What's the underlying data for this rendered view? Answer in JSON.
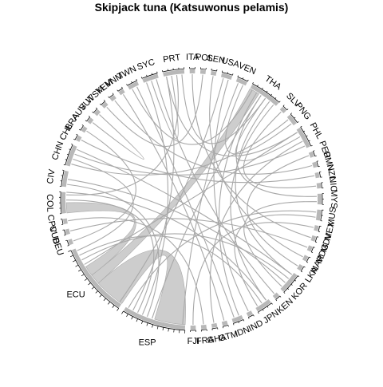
{
  "chart_data": {
    "type": "chord",
    "title": "Skipjack tuna (Katsuwonus pelamis)",
    "colors": {
      "sector": "#b8b8b8",
      "link": "#a8a8a8",
      "link_fill": "#c8c8c8",
      "axis": "#000000"
    },
    "sectors": [
      {
        "label": "CHN",
        "size": 4
      },
      {
        "label": "CHL",
        "size": 1
      },
      {
        "label": "BRA",
        "size": 1
      },
      {
        "label": "AUS",
        "size": 1
      },
      {
        "label": "VUT",
        "size": 1
      },
      {
        "label": "WSM",
        "size": 1
      },
      {
        "label": "YEM",
        "size": 1
      },
      {
        "label": "VNM",
        "size": 1
      },
      {
        "label": "TWN",
        "size": 2
      },
      {
        "label": "SYC",
        "size": 3
      },
      {
        "label": "PRT",
        "size": 4
      },
      {
        "label": "ITA",
        "size": 1
      },
      {
        "label": "POL",
        "size": 1
      },
      {
        "label": "SEN",
        "size": 1
      },
      {
        "label": "USA",
        "size": 2
      },
      {
        "label": "VEN",
        "size": 2
      },
      {
        "label": "THA",
        "size": 6
      },
      {
        "label": "SLV",
        "size": 1
      },
      {
        "label": "PNG",
        "size": 2
      },
      {
        "label": "PHL",
        "size": 4
      },
      {
        "label": "PER",
        "size": 1
      },
      {
        "label": "OMN",
        "size": 1
      },
      {
        "label": "NZL",
        "size": 1
      },
      {
        "label": "NIC",
        "size": 1
      },
      {
        "label": "MYS",
        "size": 2
      },
      {
        "label": "MUS",
        "size": 2
      },
      {
        "label": "MEX",
        "size": 1
      },
      {
        "label": "MDV",
        "size": 1
      },
      {
        "label": "MDG",
        "size": 1
      },
      {
        "label": "MAR",
        "size": 1
      },
      {
        "label": "LKA",
        "size": 1
      },
      {
        "label": "KOR",
        "size": 4
      },
      {
        "label": "KEN",
        "size": 1
      },
      {
        "label": "JPN",
        "size": 3
      },
      {
        "label": "IND",
        "size": 1
      },
      {
        "label": "IDN",
        "size": 2
      },
      {
        "label": "GTM",
        "size": 1
      },
      {
        "label": "GHA",
        "size": 1
      },
      {
        "label": "FRA",
        "size": 1
      },
      {
        "label": "FJI",
        "size": 1
      },
      {
        "label": "ESP",
        "size": 12
      },
      {
        "label": "ECU",
        "size": 14
      },
      {
        "label": "DEU",
        "size": 1
      },
      {
        "label": "CUB",
        "size": 1
      },
      {
        "label": "CPV",
        "size": 1
      },
      {
        "label": "COL",
        "size": 4
      },
      {
        "label": "CIV",
        "size": 3
      }
    ],
    "links": [
      {
        "source": "ECU",
        "target": "ESP",
        "value": 6
      },
      {
        "source": "ECU",
        "target": "THA",
        "value": 2
      },
      {
        "source": "ECU",
        "target": "COL",
        "value": 2
      },
      {
        "source": "ESP",
        "target": "THA",
        "value": 1
      },
      {
        "source": "ESP",
        "target": "CIV",
        "value": 1
      },
      {
        "source": "ESP",
        "target": "SYC",
        "value": 1
      },
      {
        "source": "COL",
        "target": "ESP",
        "value": 1
      },
      {
        "source": "PRT",
        "target": "ESP",
        "value": 1
      },
      {
        "source": "PHL",
        "target": "ECU",
        "value": 1
      },
      {
        "source": "PHL",
        "target": "THA",
        "value": 1
      },
      {
        "source": "KOR",
        "target": "THA",
        "value": 1
      },
      {
        "source": "KOR",
        "target": "ECU",
        "value": 1
      },
      {
        "source": "JPN",
        "target": "THA",
        "value": 1
      },
      {
        "source": "JPN",
        "target": "ECU",
        "value": 1
      },
      {
        "source": "CHN",
        "target": "PNG",
        "value": 1
      },
      {
        "source": "CHN",
        "target": "ECU",
        "value": 1
      },
      {
        "source": "TWN",
        "target": "THA",
        "value": 1
      },
      {
        "source": "USA",
        "target": "ECU",
        "value": 1
      },
      {
        "source": "IDN",
        "target": "THA",
        "value": 1
      },
      {
        "source": "MUS",
        "target": "ESP",
        "value": 1
      },
      {
        "source": "MYS",
        "target": "THA",
        "value": 1
      },
      {
        "source": "VEN",
        "target": "ESP",
        "value": 1
      },
      {
        "source": "SYC",
        "target": "PRT",
        "value": 1
      },
      {
        "source": "CIV",
        "target": "KOR",
        "value": 1
      },
      {
        "source": "PRT",
        "target": "COL",
        "value": 1
      },
      {
        "source": "GHA",
        "target": "PHL",
        "value": 1
      },
      {
        "source": "FJI",
        "target": "MEX",
        "value": 1
      },
      {
        "source": "IND",
        "target": "USA",
        "value": 1
      },
      {
        "source": "KEN",
        "target": "SYC",
        "value": 1
      },
      {
        "source": "MDV",
        "target": "ITA",
        "value": 1
      },
      {
        "source": "LKA",
        "target": "PER",
        "value": 1
      },
      {
        "source": "NZL",
        "target": "CHL",
        "value": 1
      },
      {
        "source": "OMN",
        "target": "YEM",
        "value": 1
      },
      {
        "source": "NIC",
        "target": "SLV",
        "value": 1
      },
      {
        "source": "GTM",
        "target": "VNM",
        "value": 1
      },
      {
        "source": "MAR",
        "target": "SEN",
        "value": 1
      },
      {
        "source": "MDG",
        "target": "CUB",
        "value": 1
      },
      {
        "source": "DEU",
        "target": "BRA",
        "value": 1
      },
      {
        "source": "CPV",
        "target": "FRA",
        "value": 1
      },
      {
        "source": "AUS",
        "target": "VUT",
        "value": 1
      },
      {
        "source": "WSM",
        "target": "POL",
        "value": 1
      },
      {
        "source": "JPN",
        "target": "MUS",
        "value": 1
      },
      {
        "source": "IDN",
        "target": "TWN",
        "value": 1
      },
      {
        "source": "PHL",
        "target": "CHN",
        "value": 1
      },
      {
        "source": "KOR",
        "target": "MYS",
        "value": 1
      },
      {
        "source": "THA",
        "target": "PRT",
        "value": 1
      },
      {
        "source": "VEN",
        "target": "PNG",
        "value": 1
      },
      {
        "source": "CHN",
        "target": "KOR",
        "value": 1
      },
      {
        "source": "PRT",
        "target": "PHL",
        "value": 1
      },
      {
        "source": "JPN",
        "target": "COL",
        "value": 1
      }
    ]
  }
}
